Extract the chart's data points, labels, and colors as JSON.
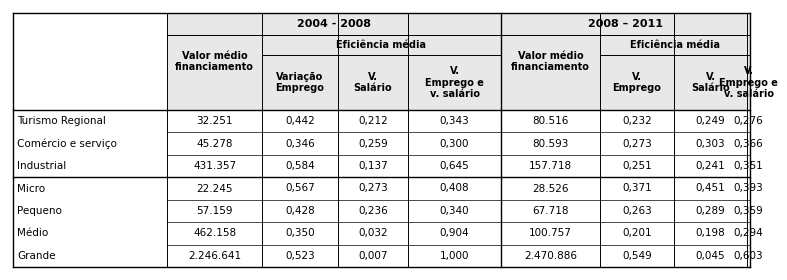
{
  "period1": "2004 - 2008",
  "period2": "2008 – 2011",
  "eficiencia_label": "Eficiência média",
  "sub_headers_p1": [
    "Variação\nEmprego",
    "V.\nSalário",
    "V.\nEmprego e\nv. salário"
  ],
  "sub_headers_p2": [
    "V.\nEmprego",
    "V.\nSalário",
    "V.\nEmprego e\nv. salário"
  ],
  "vmf_label": "Valor médio\nfinanciamento",
  "row_labels": [
    "Turismo Regional",
    "Comércio e serviço",
    "Industrial",
    "Micro",
    "Pequeno",
    "Médio",
    "Grande"
  ],
  "data_p1": [
    [
      "32.251",
      "0,442",
      "0,212",
      "0,343"
    ],
    [
      "45.278",
      "0,346",
      "0,259",
      "0,300"
    ],
    [
      "431.357",
      "0,584",
      "0,137",
      "0,645"
    ],
    [
      "22.245",
      "0,567",
      "0,273",
      "0,408"
    ],
    [
      "57.159",
      "0,428",
      "0,236",
      "0,340"
    ],
    [
      "462.158",
      "0,350",
      "0,032",
      "0,904"
    ],
    [
      "2.246.641",
      "0,523",
      "0,007",
      "1,000"
    ]
  ],
  "data_p2": [
    [
      "80.516",
      "0,232",
      "0,249",
      "0,276"
    ],
    [
      "80.593",
      "0,273",
      "0,303",
      "0,366"
    ],
    [
      "157.718",
      "0,251",
      "0,241",
      "0,351"
    ],
    [
      "28.526",
      "0,371",
      "0,451",
      "0,393"
    ],
    [
      "67.718",
      "0,263",
      "0,289",
      "0,359"
    ],
    [
      "100.757",
      "0,201",
      "0,198",
      "0,294"
    ],
    [
      "2.470.886",
      "0,549",
      "0,045",
      "0,603"
    ]
  ],
  "bg_color": "#ffffff",
  "header_bg": "#e8e8e8",
  "line_color": "#000000",
  "text_color": "#000000",
  "header_fontsize": 7.0,
  "data_fontsize": 7.5,
  "period_fontsize": 8.0
}
